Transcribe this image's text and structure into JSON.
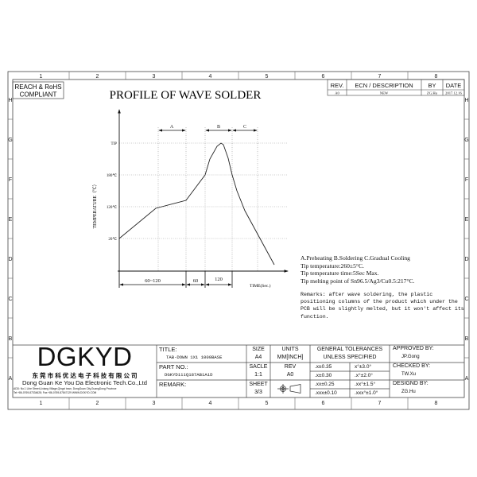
{
  "frame": {
    "columns": [
      "1",
      "2",
      "3",
      "4",
      "5",
      "6",
      "7",
      "8"
    ],
    "rows": [
      "H",
      "G",
      "F",
      "E",
      "D",
      "C",
      "B",
      "A"
    ]
  },
  "compliance": {
    "line1": "REACH & RoHS",
    "line2": "COMPLIANT"
  },
  "drawing_title": "PROFILE OF WAVE SOLDER",
  "revision_table": {
    "headers": {
      "rev": "REV.",
      "ecn": "ECN / DESCRIPTION",
      "by": "BY",
      "date": "DATE"
    },
    "row": {
      "rev": "A0",
      "ecn": "NEW",
      "by": "ZG.Hu",
      "date": "2017.12.16"
    }
  },
  "profile_chart": {
    "y_axis_label": "TEMPERATURE（℃）",
    "x_axis_label": "TIME(Sec.)",
    "y_ticks": [
      "TIP",
      "180℃",
      "120℃",
      "20℃"
    ],
    "zones": [
      "A",
      "B",
      "C"
    ],
    "durations": [
      "60~120",
      "60",
      "120"
    ]
  },
  "notes": {
    "line1": "A.Preheating  B.Soldering  C.Gradual Cooling",
    "line2": "Tip temperature:260±5°C.",
    "line3": "Tip temperature time:5Sec Max.",
    "line4": "Tip melting point of Sn96.5/Ag3/Cu0.5:217°C.",
    "remarks": "Remarks: after wave soldering, the plastic positioning columns of the product  which under the PCB will be slightly melted, but it won't affect its function."
  },
  "title_block": {
    "logo": "DGKYD",
    "company_cn": "东 莞 市 科 优 达 电 子 科 技 有 限 公 司",
    "company_en": "Dong Guan Ke You Da Electronic Tech.Co.,Ltd",
    "address": "ADD: No.1 Lihe Street,Lixiang Village,Qingxi town, DongGuan City,GuangDong Province",
    "contact": "Tel:+86-0769-87334628; Fax:+86-0769-87847129  WWW.DGKYD.COM",
    "title_label": "TITLE:",
    "title_value": "TAB-DOWN 1X1 1000BASE",
    "part_label": "PART NO.:",
    "part_value": "DGKYD111Q187AB1A1D",
    "remark_label": "REMARK:",
    "size_label": "SIZE",
    "size_value": "A4",
    "units_label": "UNITS",
    "units_value": "MM[INCH]",
    "scale_label": "SACLE",
    "scale_value": "1:1",
    "rev_label": "REV",
    "rev_value": "A0",
    "sheet_label": "SHEET",
    "sheet_value": "3/3",
    "tol_header1": "GENERAL TOLERANCES",
    "tol_header2": "UNLESS SPECIFIED",
    "tolerances": [
      [
        ".x±0.35",
        "x°±3.0°"
      ],
      [
        ".x±0.30",
        ".x°±2.0°"
      ],
      [
        ".xx±0.25",
        ".xx°±1.5°"
      ],
      [
        ".xxx±0.10",
        ".xxx°±1.0°"
      ]
    ],
    "approved_label": "APPROVED BY:",
    "approved_value": "JP.Gong",
    "checked_label": "CHECKED BY:",
    "checked_value": "TW.Xu",
    "designed_label": "DESIGND BY:",
    "designed_value": "ZG.Hu"
  }
}
